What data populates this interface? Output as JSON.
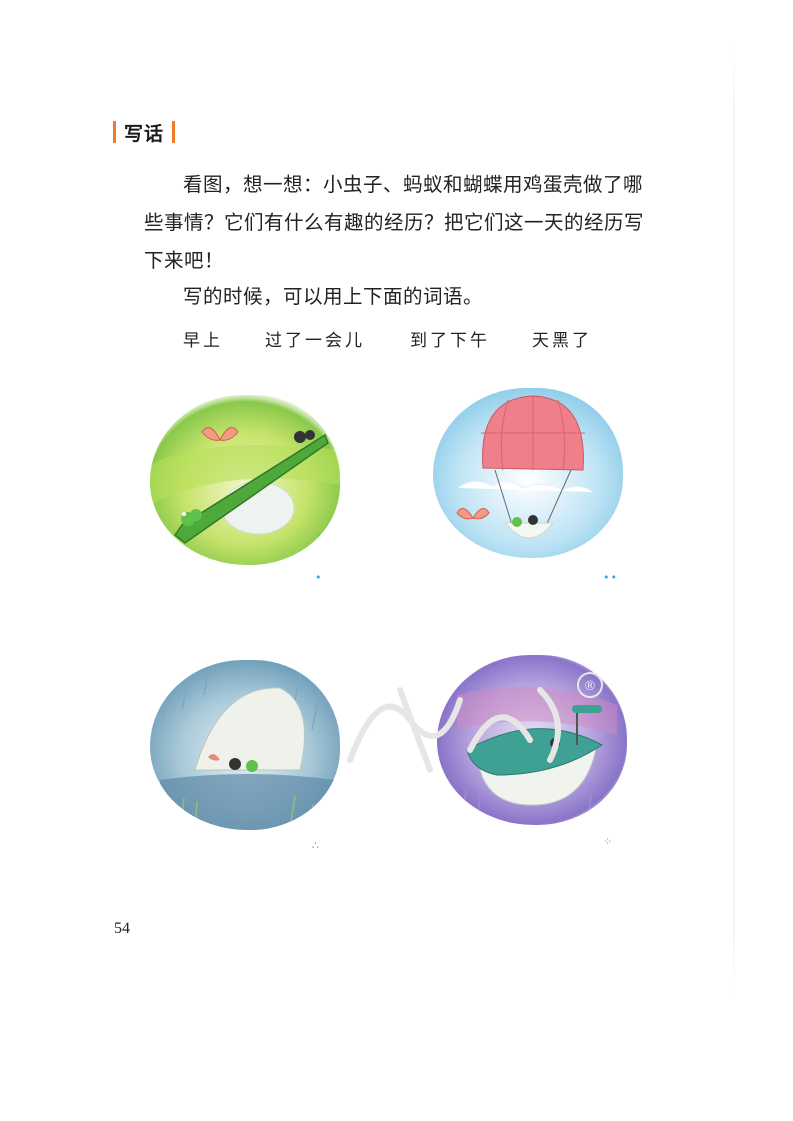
{
  "section": {
    "title": "写话"
  },
  "prompt": {
    "paragraph1": "看图，想一想：小虫子、蚂蚁和蝴蝶用鸡蛋壳做了哪些事情？它们有什么有趣的经历？把它们这一天的经历写下来吧！",
    "paragraph2": "写的时候，可以用上下面的词语。"
  },
  "word_bank": [
    "早上",
    "过了一会儿",
    "到了下午",
    "天黑了"
  ],
  "pictures": [
    {
      "order_mark": "•"
    },
    {
      "order_mark": "••"
    },
    {
      "order_mark": "∴"
    },
    {
      "order_mark": "⁘"
    }
  ],
  "watermark": {
    "symbol": "®"
  },
  "page_number": "54",
  "colors": {
    "accent": "#f07a2a",
    "order_dots": "#3aa7d8"
  }
}
